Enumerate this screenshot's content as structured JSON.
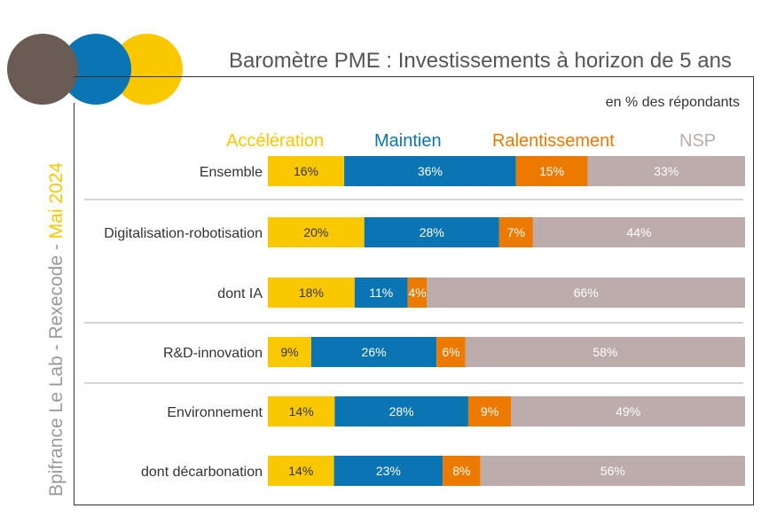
{
  "title": "Baromètre PME : Investissements à horizon de 5 ans",
  "subtitle": "en % des répondants",
  "source": {
    "part1": "Bpifrance Le Lab - Rexecode - ",
    "part2": "Mai 2024"
  },
  "colors": {
    "yellow": "#f9c800",
    "blue": "#0a75b2",
    "orange": "#ec7a00",
    "gray": "#bcacab",
    "brown": "#6a5b55"
  },
  "chart_data": {
    "type": "bar",
    "orientation": "horizontal",
    "stacked": true,
    "unit": "%",
    "categories": [
      "Ensemble",
      "Digitalisation-robotisation",
      "dont IA",
      "R&D-innovation",
      "Environnement",
      "dont décarbonation"
    ],
    "series": [
      {
        "name": "Accélération",
        "color": "#f9c800",
        "label_color": "#333333",
        "values": [
          16,
          20,
          18,
          9,
          14,
          14
        ]
      },
      {
        "name": "Maintien",
        "color": "#0a75b2",
        "label_color": "#ffffff",
        "values": [
          36,
          28,
          11,
          26,
          28,
          23
        ]
      },
      {
        "name": "Ralentissement",
        "color": "#ec7a00",
        "label_color": "#ffffff",
        "values": [
          15,
          7,
          4,
          6,
          9,
          8
        ]
      },
      {
        "name": "NSP",
        "color": "#bcacab",
        "label_color": "#ffffff",
        "values": [
          33,
          44,
          66,
          58,
          49,
          56
        ]
      }
    ],
    "data_labels": [
      [
        "16%",
        "20%",
        "18%",
        "9%",
        "14%",
        "14%"
      ],
      [
        "36%",
        "28%",
        "11%",
        "26%",
        "28%",
        "23%"
      ],
      [
        "15%",
        "7%",
        "4%",
        "6%",
        "9%",
        "8%"
      ],
      [
        "33%",
        "44%",
        "66%",
        "58%",
        "49%",
        "56%"
      ]
    ],
    "legend_position": "top",
    "grid": false
  }
}
